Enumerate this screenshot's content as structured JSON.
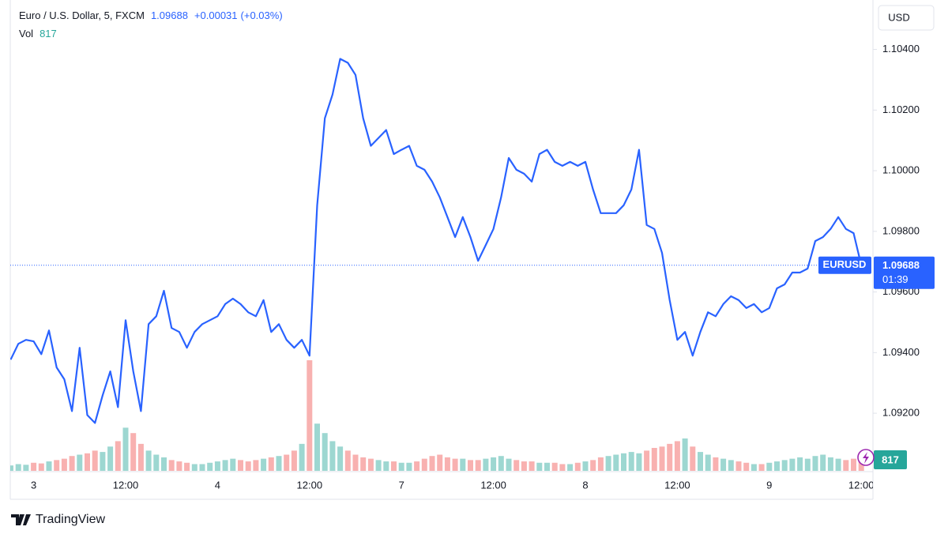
{
  "header": {
    "title": "Euro / U.S. Dollar, 5, FXCM",
    "change": "+0.00031",
    "change_percent": "(+0.03%)",
    "currency": "USD",
    "countdown": "01:39"
  },
  "footer": {
    "brand": "TradingView"
  },
  "chart_data": {
    "type": "line",
    "categories": [
      null,
      null,
      null,
      "3",
      null,
      null,
      null,
      null,
      null,
      null,
      null,
      null,
      null,
      null,
      null,
      "12:00",
      null,
      null,
      null,
      null,
      null,
      null,
      null,
      null,
      null,
      null,
      null,
      "4",
      null,
      null,
      null,
      null,
      null,
      null,
      null,
      null,
      null,
      null,
      null,
      "12:00",
      null,
      null,
      null,
      null,
      null,
      null,
      null,
      null,
      null,
      null,
      null,
      "7",
      null,
      null,
      null,
      null,
      null,
      null,
      null,
      null,
      null,
      null,
      null,
      "12:00",
      null,
      null,
      null,
      null,
      null,
      null,
      null,
      null,
      null,
      null,
      null,
      "8",
      null,
      null,
      null,
      null,
      null,
      null,
      null,
      null,
      null,
      null,
      null,
      "12:00",
      null,
      null,
      null,
      null,
      null,
      null,
      null,
      null,
      null,
      null,
      null,
      "9",
      null,
      null,
      null,
      null,
      null,
      null,
      null,
      null,
      null,
      null,
      null,
      "12:00"
    ],
    "series": [
      {
        "name": "EURUSD",
        "color": "#2962ff",
        "values": [
          1.09377,
          1.09429,
          1.09442,
          1.09437,
          1.09395,
          1.09473,
          1.09351,
          1.09312,
          1.09207,
          1.09416,
          1.09194,
          1.09168,
          1.09259,
          1.09338,
          1.0922,
          1.09507,
          1.09338,
          1.09207,
          1.09494,
          1.0952,
          1.09604,
          1.09481,
          1.09468,
          1.09416,
          1.09468,
          1.09494,
          1.09507,
          1.0952,
          1.0956,
          1.09578,
          1.0956,
          1.09533,
          1.0952,
          1.09573,
          1.09468,
          1.09494,
          1.09442,
          1.09416,
          1.09442,
          1.0939,
          1.09886,
          1.10173,
          1.10251,
          1.10369,
          1.10356,
          1.10316,
          1.10173,
          1.10082,
          1.10108,
          1.10134,
          1.10055,
          1.10069,
          1.10082,
          1.10016,
          1.10003,
          1.09964,
          1.09912,
          1.09847,
          1.09781,
          1.09847,
          1.09781,
          1.09703,
          1.09755,
          1.09808,
          1.09912,
          1.10042,
          1.10003,
          1.0999,
          1.09964,
          1.10055,
          1.10069,
          1.10029,
          1.10016,
          1.10029,
          1.10016,
          1.10029,
          1.09938,
          1.0986,
          1.0986,
          1.0986,
          1.09886,
          1.09938,
          1.10069,
          1.09821,
          1.09808,
          1.09729,
          1.09573,
          1.09442,
          1.09468,
          1.0939,
          1.09468,
          1.09533,
          1.0952,
          1.0956,
          1.09586,
          1.09573,
          1.09547,
          1.0956,
          1.09533,
          1.09547,
          1.09612,
          1.09625,
          1.09664,
          1.09664,
          1.09677,
          1.09768,
          1.09781,
          1.09808,
          1.09847,
          1.09808,
          1.09794,
          1.09688
        ]
      }
    ],
    "volume": {
      "name": "Vol",
      "up_color": "#26a69a",
      "down_color": "#ef5350",
      "values": [
        400,
        500,
        450,
        600,
        550,
        700,
        800,
        900,
        1100,
        1200,
        1300,
        1500,
        1400,
        1800,
        2200,
        3200,
        2800,
        2000,
        1500,
        1200,
        1000,
        800,
        700,
        600,
        500,
        500,
        600,
        700,
        800,
        900,
        800,
        700,
        800,
        900,
        1000,
        1100,
        1200,
        1500,
        2000,
        8200,
        3500,
        2800,
        2200,
        1800,
        1500,
        1200,
        1000,
        900,
        800,
        700,
        700,
        600,
        600,
        700,
        900,
        1100,
        1200,
        1000,
        900,
        900,
        800,
        800,
        900,
        1000,
        1100,
        900,
        800,
        700,
        700,
        600,
        600,
        600,
        500,
        500,
        600,
        700,
        800,
        1000,
        1100,
        1200,
        1300,
        1400,
        1300,
        1500,
        1700,
        1800,
        2000,
        2200,
        2400,
        1800,
        1400,
        1200,
        1000,
        900,
        800,
        700,
        600,
        500,
        500,
        600,
        700,
        800,
        900,
        1000,
        900,
        1100,
        1200,
        1000,
        900,
        800,
        900,
        817
      ]
    },
    "ylim": [
      1.0901,
      1.1055
    ],
    "yticks": [
      {
        "value": 1.092,
        "label": "1.09200"
      },
      {
        "value": 1.094,
        "label": "1.09400"
      },
      {
        "value": 1.096,
        "label": "1.09600"
      },
      {
        "value": 1.098,
        "label": "1.09800"
      },
      {
        "value": 1.1,
        "label": "1.10000"
      },
      {
        "value": 1.102,
        "label": "1.10200"
      },
      {
        "value": 1.104,
        "label": "1.10400"
      }
    ],
    "grid": false
  }
}
